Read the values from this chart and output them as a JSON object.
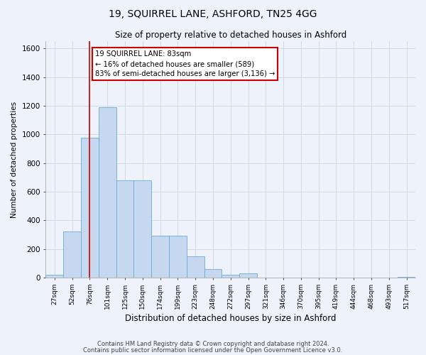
{
  "title": "19, SQUIRREL LANE, ASHFORD, TN25 4GG",
  "subtitle": "Size of property relative to detached houses in Ashford",
  "xlabel": "Distribution of detached houses by size in Ashford",
  "ylabel": "Number of detached properties",
  "categories": [
    "27sqm",
    "52sqm",
    "76sqm",
    "101sqm",
    "125sqm",
    "150sqm",
    "174sqm",
    "199sqm",
    "223sqm",
    "248sqm",
    "272sqm",
    "297sqm",
    "321sqm",
    "346sqm",
    "370sqm",
    "395sqm",
    "419sqm",
    "444sqm",
    "468sqm",
    "493sqm",
    "517sqm"
  ],
  "bar_heights": [
    20,
    320,
    975,
    1190,
    680,
    680,
    295,
    295,
    148,
    60,
    22,
    28,
    0,
    0,
    0,
    0,
    0,
    0,
    0,
    0,
    5
  ],
  "bar_color": "#c5d8f0",
  "bar_edge_color": "#6aaad4",
  "grid_color": "#d0d8ea",
  "background_color": "#eef2fb",
  "ylim": [
    0,
    1650
  ],
  "yticks": [
    0,
    200,
    400,
    600,
    800,
    1000,
    1200,
    1400,
    1600
  ],
  "redline_x": 2.0,
  "annotation_text": "19 SQUIRREL LANE: 83sqm\n← 16% of detached houses are smaller (589)\n83% of semi-detached houses are larger (3,136) →",
  "annotation_box_color": "#ffffff",
  "annotation_box_edge": "#cc0000",
  "redline_color": "#cc0000",
  "footer_line1": "Contains HM Land Registry data © Crown copyright and database right 2024.",
  "footer_line2": "Contains public sector information licensed under the Open Government Licence v3.0."
}
